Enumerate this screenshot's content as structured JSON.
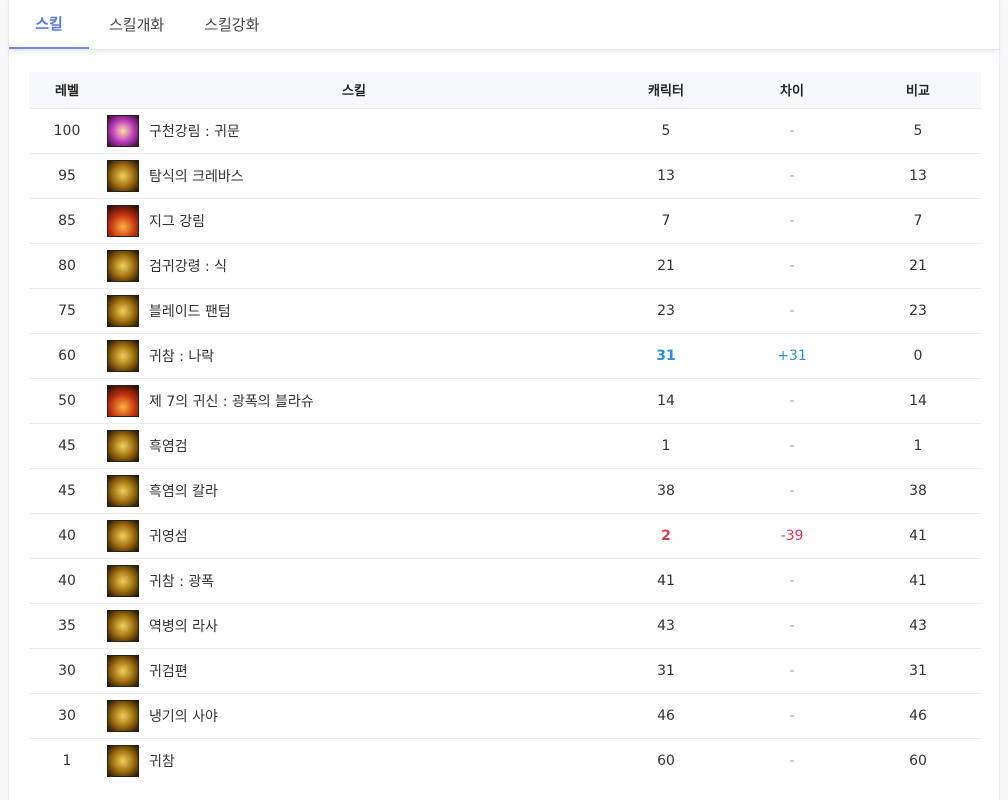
{
  "tabs": [
    {
      "label": "스킬",
      "active": true
    },
    {
      "label": "스킬개화"
    },
    {
      "label": "스킬강화"
    }
  ],
  "colors": {
    "accent": "#5b7be0",
    "positive": "#2b8fe8",
    "negative": "#e23a4a"
  },
  "table": {
    "headers": [
      "레벨",
      "스킬",
      "캐릭터",
      "차이",
      "비교"
    ],
    "rows": [
      {
        "level": "100",
        "skill": "구천강림 : 귀문",
        "character": "5",
        "diff": "-",
        "compare": "5",
        "icon": "purple"
      },
      {
        "level": "95",
        "skill": "탐식의 크레바스",
        "character": "13",
        "diff": "-",
        "compare": "13"
      },
      {
        "level": "85",
        "skill": "지그 강림",
        "character": "7",
        "diff": "-",
        "compare": "7",
        "icon": "red"
      },
      {
        "level": "80",
        "skill": "검귀강령 : 식",
        "character": "21",
        "diff": "-",
        "compare": "21"
      },
      {
        "level": "75",
        "skill": "블레이드 팬텀",
        "character": "23",
        "diff": "-",
        "compare": "23"
      },
      {
        "level": "60",
        "skill": "귀참 : 나락",
        "character": "31",
        "diff": "+31",
        "compare": "0",
        "state": "pos"
      },
      {
        "level": "50",
        "skill": "제 7의 귀신 : 광폭의 블라슈",
        "character": "14",
        "diff": "-",
        "compare": "14",
        "icon": "red"
      },
      {
        "level": "45",
        "skill": "흑염검",
        "character": "1",
        "diff": "-",
        "compare": "1"
      },
      {
        "level": "45",
        "skill": "흑염의 칼라",
        "character": "38",
        "diff": "-",
        "compare": "38"
      },
      {
        "level": "40",
        "skill": "귀영섬",
        "character": "2",
        "diff": "-39",
        "compare": "41",
        "state": "neg"
      },
      {
        "level": "40",
        "skill": "귀참 : 광폭",
        "character": "41",
        "diff": "-",
        "compare": "41"
      },
      {
        "level": "35",
        "skill": "역병의 라사",
        "character": "43",
        "diff": "-",
        "compare": "43"
      },
      {
        "level": "30",
        "skill": "귀검편",
        "character": "31",
        "diff": "-",
        "compare": "31"
      },
      {
        "level": "30",
        "skill": "냉기의 사야",
        "character": "46",
        "diff": "-",
        "compare": "46"
      },
      {
        "level": "1",
        "skill": "귀참",
        "character": "60",
        "diff": "-",
        "compare": "60"
      }
    ]
  }
}
